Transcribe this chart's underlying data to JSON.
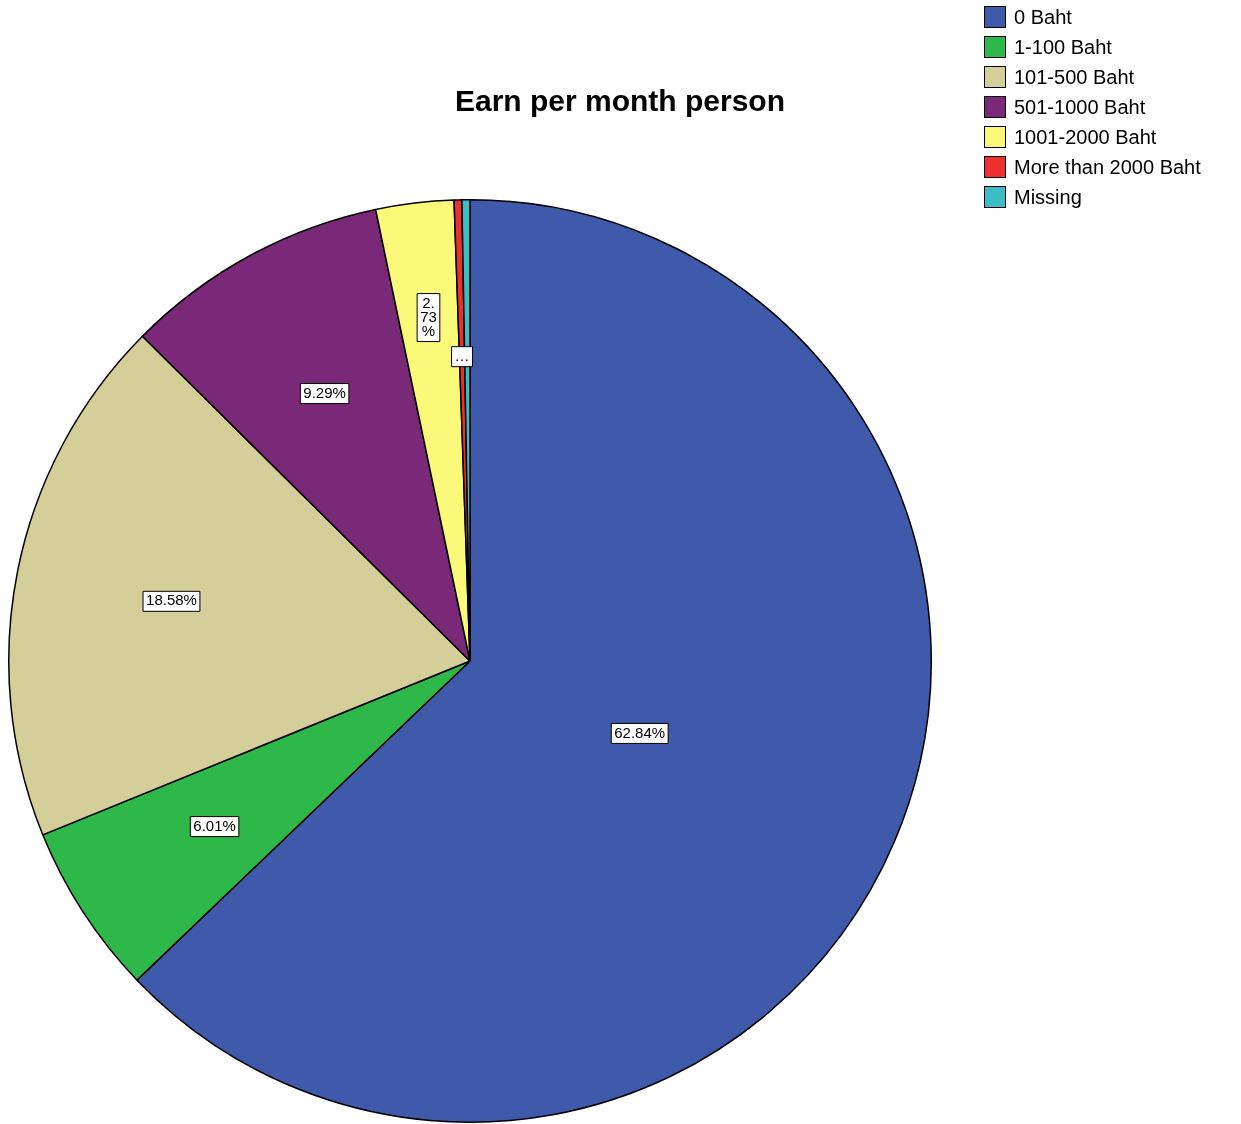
{
  "chart_data": {
    "type": "pie",
    "title": "Earn per month person",
    "categories": [
      "0 Baht",
      "1-100 Baht",
      "101-500 Baht",
      "501-1000 Baht",
      "1001-2000 Baht",
      "More than 2000 Baht",
      "Missing"
    ],
    "values": [
      62.84,
      6.01,
      18.58,
      9.29,
      2.73,
      0.27,
      0.28
    ],
    "colors": [
      "#3f59ab",
      "#2fb84a",
      "#d4ce98",
      "#7a2878",
      "#fbf97a",
      "#ee2f2f",
      "#3cbcc4"
    ],
    "value_labels": [
      "62.84%",
      "6.01%",
      "18.58%",
      "9.29%",
      "2.73%",
      "…",
      null
    ],
    "legend": "top right"
  }
}
